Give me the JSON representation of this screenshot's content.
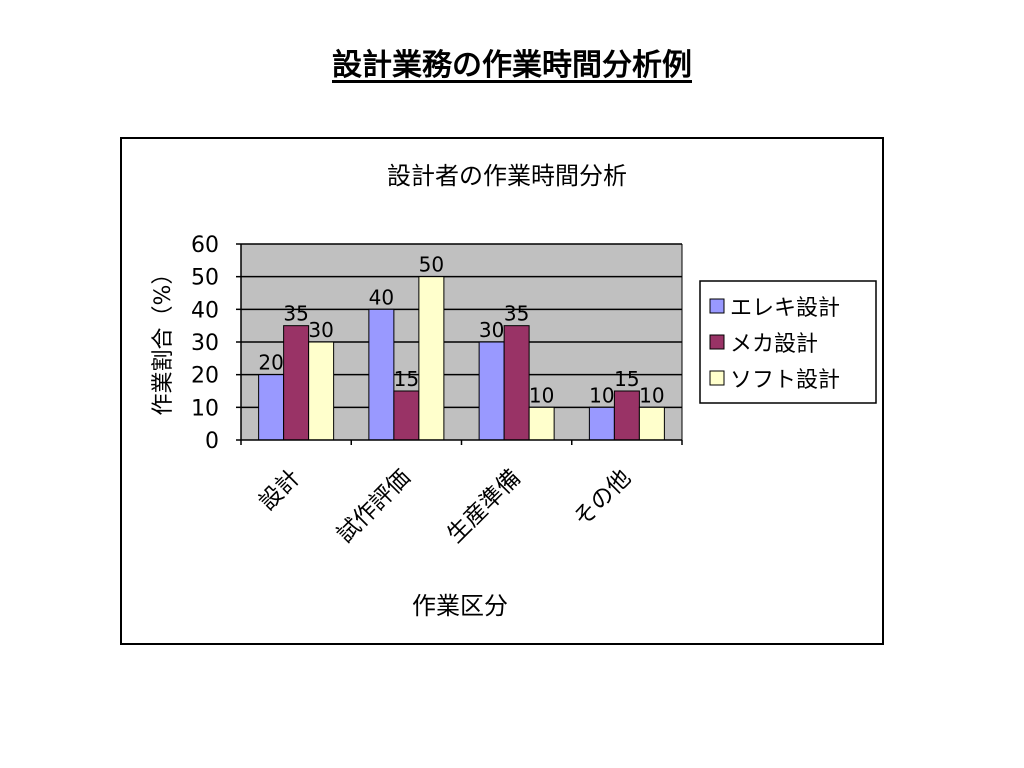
{
  "slide": {
    "title": "設計業務の作業時間分析例"
  },
  "chart_data": {
    "type": "bar",
    "title": "設計者の作業時間分析",
    "xlabel": "作業区分",
    "ylabel": "作業割合（%）",
    "categories": [
      "設計",
      "試作評価",
      "生産準備",
      "その他"
    ],
    "series": [
      {
        "name": "エレキ設計",
        "values": [
          20,
          40,
          30,
          10
        ],
        "color": "#9999ff"
      },
      {
        "name": "メカ設計",
        "values": [
          35,
          15,
          35,
          15
        ],
        "color": "#993366"
      },
      {
        "name": "ソフト設計",
        "values": [
          30,
          50,
          10,
          10
        ],
        "color": "#ffffcc"
      }
    ],
    "ylim": [
      0,
      60
    ],
    "yticks": [
      0,
      10,
      20,
      30,
      40,
      50,
      60
    ],
    "grid": true,
    "plot_background": "#c0c0c0",
    "data_labels": true,
    "legend": "right"
  }
}
